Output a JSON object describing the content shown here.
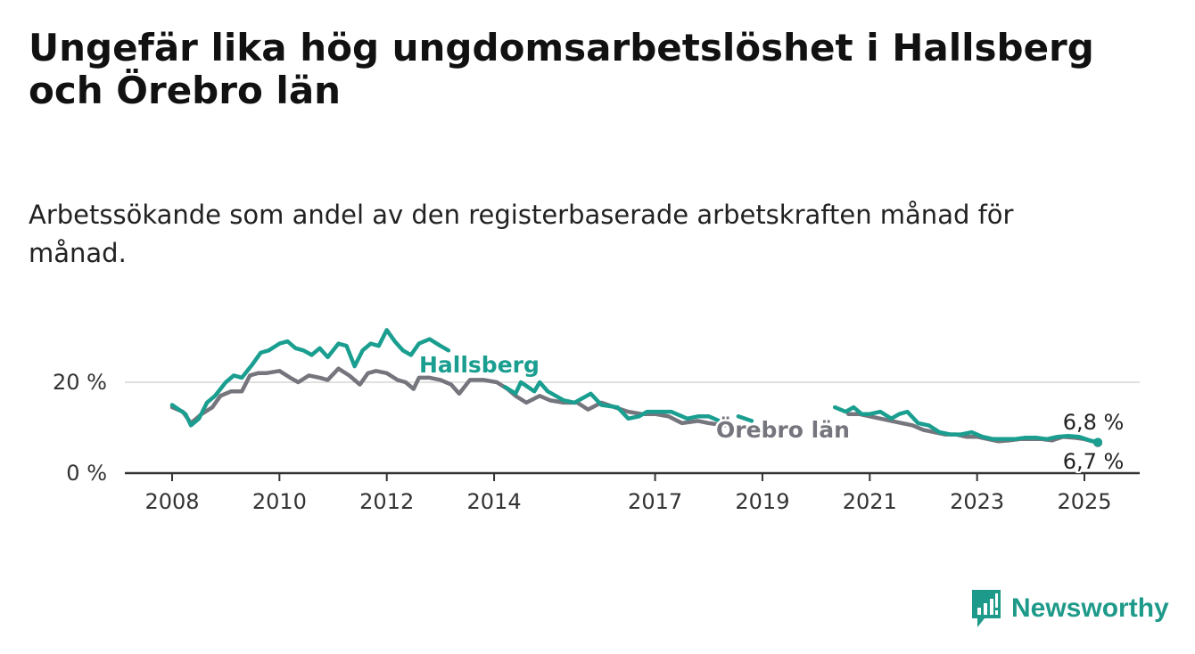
{
  "title": "Ungefär lika hög ungdomsarbetslöshet i Hallsberg och Örebro län",
  "subtitle": "Arbetssökande som andel av den registerbaserade arbetskraften månad för månad.",
  "logo": {
    "text": "Newsworthy",
    "icon": "bar-chart-icon",
    "color": "#1e9a8a"
  },
  "colors": {
    "hallsberg": "#1a9e90",
    "orebro": "#75757d",
    "grid": "#d5d5d5",
    "axis": "#333333"
  },
  "chart_data": {
    "type": "line",
    "title": "Ungefär lika hög ungdomsarbetslöshet i Hallsberg och Örebro län",
    "ylabel": "",
    "xlabel": "",
    "ylim": [
      0,
      33
    ],
    "y_ticks": [
      0,
      20
    ],
    "y_tick_labels": [
      "0 %",
      "20 %"
    ],
    "x_ticks": [
      2008,
      2010,
      2012,
      2014,
      2017,
      2019,
      2021,
      2023,
      2025
    ],
    "grid": "horizontal",
    "series": [
      {
        "name": "Hallsberg",
        "x": [
          2008.0,
          2008.25,
          2008.35,
          2008.5,
          2008.65,
          2008.8,
          2009.0,
          2009.15,
          2009.3,
          2009.5,
          2009.65,
          2009.8,
          2010.0,
          2010.15,
          2010.3,
          2010.45,
          2010.6,
          2010.75,
          2010.9,
          2011.1,
          2011.25,
          2011.4,
          2011.55,
          2011.7,
          2011.85,
          2012.0,
          2012.15,
          2012.3,
          2012.45,
          2012.6,
          2012.8,
          2013.0,
          2013.15,
          2013.3,
          2013.6,
          2013.9,
          2014.2,
          2014.4,
          2014.5,
          2014.75,
          2014.85,
          2015.0,
          2015.3,
          2015.5,
          2015.8,
          2016.0,
          2016.3,
          2016.5,
          2016.7,
          2016.85,
          2017.0,
          2017.3,
          2017.6,
          2017.8,
          2018.0,
          2018.2,
          2018.45,
          2018.55,
          2018.8,
          2018.9,
          2019.1,
          2019.3,
          2019.6,
          2019.9,
          2020.1,
          2020.35,
          2020.45,
          2020.55,
          2020.7,
          2020.85,
          2021.0,
          2021.2,
          2021.4,
          2021.55,
          2021.7,
          2021.9,
          2022.1,
          2022.3,
          2022.5,
          2022.7,
          2022.9,
          2023.1,
          2023.3,
          2023.5,
          2023.7,
          2023.9,
          2024.1,
          2024.3,
          2024.5,
          2024.7,
          2024.9,
          2025.1,
          2025.25
        ],
        "values": [
          15.0,
          13.0,
          10.5,
          12.0,
          15.5,
          17.0,
          20.0,
          21.5,
          21.0,
          24.0,
          26.5,
          27.0,
          28.5,
          29.0,
          27.5,
          27.0,
          26.0,
          27.5,
          25.5,
          28.5,
          28.0,
          23.5,
          27.0,
          28.5,
          28.0,
          31.5,
          29.0,
          27.0,
          26.0,
          28.5,
          29.5,
          28.0,
          27.0,
          null,
          null,
          null,
          19.0,
          17.5,
          20.0,
          18.0,
          20.0,
          18.0,
          16.0,
          15.5,
          17.5,
          15.0,
          14.5,
          12.0,
          12.5,
          13.5,
          13.5,
          13.5,
          12.0,
          12.5,
          12.5,
          11.5,
          null,
          12.5,
          11.5,
          null,
          null,
          null,
          null,
          null,
          null,
          14.5,
          14.0,
          13.5,
          14.5,
          13.0,
          13.0,
          13.5,
          12.0,
          13.0,
          13.5,
          11.0,
          10.5,
          9.0,
          8.5,
          8.5,
          9.0,
          8.0,
          7.5,
          7.5,
          7.5,
          7.8,
          7.8,
          7.5,
          8.0,
          8.2,
          8.0,
          7.2,
          6.8
        ]
      },
      {
        "name": "Örebro län",
        "x": [
          2008.0,
          2008.2,
          2008.35,
          2008.55,
          2008.75,
          2008.9,
          2009.1,
          2009.3,
          2009.45,
          2009.6,
          2009.75,
          2010.0,
          2010.2,
          2010.35,
          2010.55,
          2010.75,
          2010.9,
          2011.1,
          2011.3,
          2011.5,
          2011.65,
          2011.8,
          2012.0,
          2012.2,
          2012.35,
          2012.5,
          2012.6,
          2012.8,
          2013.0,
          2013.2,
          2013.35,
          2013.55,
          2013.8,
          2014.05,
          2014.25,
          2014.4,
          2014.6,
          2014.85,
          2015.05,
          2015.3,
          2015.55,
          2015.75,
          2016.0,
          2016.25,
          2016.5,
          2016.75,
          2017.0,
          2017.25,
          2017.5,
          2017.8,
          2018.0,
          2018.3,
          2018.6,
          2018.9,
          2019.2,
          2019.5,
          2019.8,
          2020.1,
          2020.4,
          2020.6,
          2020.8,
          2021.0,
          2021.2,
          2021.4,
          2021.6,
          2021.8,
          2022.0,
          2022.2,
          2022.4,
          2022.6,
          2022.8,
          2023.0,
          2023.2,
          2023.4,
          2023.6,
          2023.8,
          2024.0,
          2024.2,
          2024.4,
          2024.6,
          2024.8,
          2025.0,
          2025.25
        ],
        "values": [
          14.5,
          13.5,
          11.0,
          13.0,
          14.5,
          17.0,
          18.0,
          18.0,
          21.5,
          22.0,
          22.0,
          22.5,
          21.0,
          20.0,
          21.5,
          21.0,
          20.5,
          23.0,
          21.5,
          19.5,
          22.0,
          22.5,
          22.0,
          20.5,
          20.0,
          18.5,
          21.0,
          21.0,
          20.5,
          19.5,
          17.5,
          20.5,
          20.5,
          20.0,
          18.5,
          17.0,
          15.5,
          17.0,
          16.0,
          15.5,
          15.5,
          14.0,
          15.5,
          14.5,
          13.5,
          13.0,
          13.0,
          12.5,
          11.0,
          11.5,
          11.0,
          10.5,
          null,
          null,
          null,
          null,
          null,
          null,
          null,
          13.0,
          13.0,
          12.5,
          12.0,
          11.5,
          11.0,
          10.5,
          9.5,
          9.0,
          8.5,
          8.5,
          8.0,
          8.0,
          7.5,
          7.0,
          7.2,
          7.5,
          7.5,
          7.5,
          7.2,
          8.0,
          7.8,
          7.5,
          6.7
        ]
      }
    ],
    "labels": [
      {
        "series": "Hallsberg",
        "text": "Hallsberg"
      },
      {
        "series": "Örebro län",
        "text": "Örebro län"
      }
    ],
    "end_labels": [
      {
        "series": "Hallsberg",
        "text": "6,8 %"
      },
      {
        "series": "Örebro län",
        "text": "6,7 %"
      }
    ]
  }
}
